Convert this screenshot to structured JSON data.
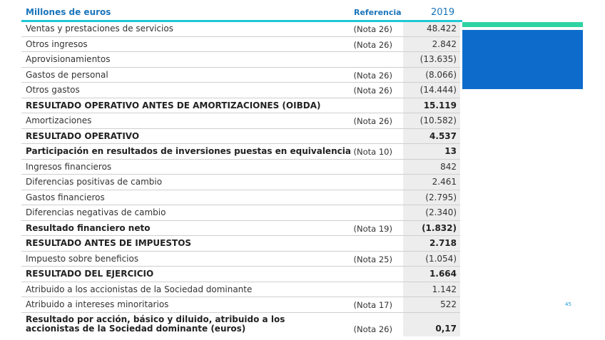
{
  "header": {
    "label": "Millones de euros",
    "ref": "Referencia",
    "year": "2019"
  },
  "rows": [
    {
      "label": "Ventas y prestaciones de servicios",
      "ref": "(Nota 26)",
      "value": "48.422"
    },
    {
      "label": "Otros ingresos",
      "ref": "(Nota 26)",
      "value": "2.842"
    },
    {
      "label": "Aprovisionamientos",
      "value": "(13.635)"
    },
    {
      "label": "Gastos de personal",
      "ref": "(Nota 26)",
      "value": "(8.066)"
    },
    {
      "label": "Otros gastos",
      "ref": "(Nota 26)",
      "value": "(14.444)"
    },
    {
      "label": "RESULTADO OPERATIVO ANTES DE AMORTIZACIONES (OIBDA)",
      "value": "15.119"
    },
    {
      "label": "Amortizaciones",
      "ref": "(Nota 26)",
      "value": "(10.582)"
    },
    {
      "label": "RESULTADO OPERATIVO",
      "value": "4.537"
    },
    {
      "label": "Participación en resultados de inversiones puestas en equivalencia",
      "ref": "(Nota 10)",
      "value": "13"
    },
    {
      "label": "Ingresos financieros",
      "value": "842"
    },
    {
      "label": "Diferencias positivas de cambio",
      "value": "2.461"
    },
    {
      "label": "Gastos financieros",
      "value": "(2.795)"
    },
    {
      "label": "Diferencias negativas de cambio",
      "value": "(2.340)"
    },
    {
      "label": "Resultado financiero neto",
      "ref": "(Nota 19)",
      "value": "(1.832)"
    },
    {
      "label": "RESULTADO ANTES DE IMPUESTOS",
      "value": "2.718"
    },
    {
      "label": "Impuesto sobre beneficios",
      "ref": "(Nota 25)",
      "value": "(1.054)"
    },
    {
      "label": "RESULTADO DEL EJERCICIO",
      "value": "1.664"
    },
    {
      "label": "Atribuido a los accionistas de la Sociedad dominante",
      "value": "1.142"
    },
    {
      "label": "Atribuido a intereses minoritarios",
      "ref": "(Nota 17)",
      "value": "522"
    },
    {
      "label": "Resultado por acción, básico y diluido, atribuido a los accionistas de la Sociedad dominante (euros)",
      "ref": "(Nota 26)",
      "value": "0,17"
    }
  ],
  "page_number": "45"
}
